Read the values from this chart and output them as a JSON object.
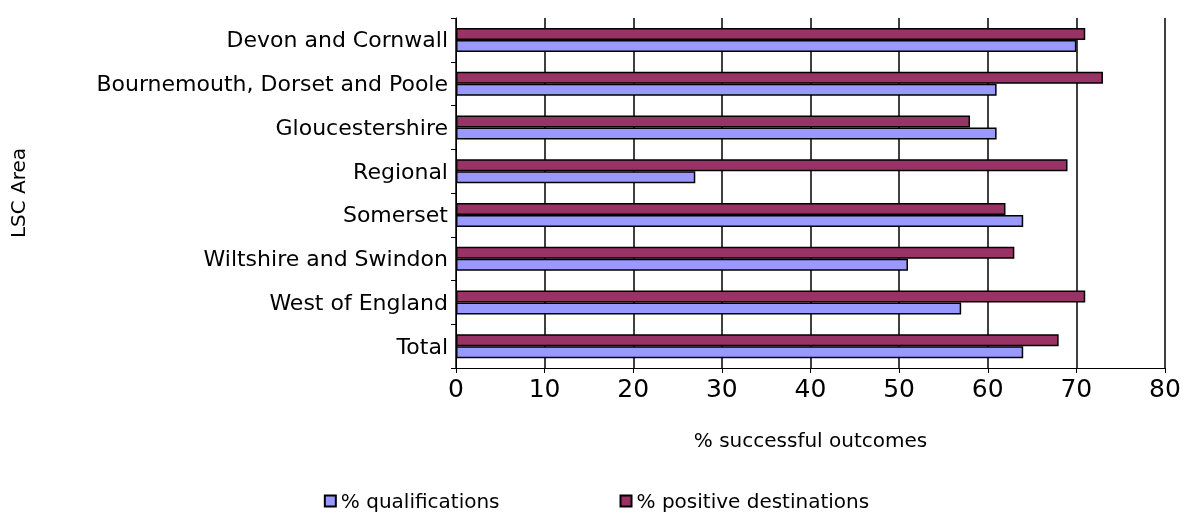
{
  "chart_data": {
    "type": "bar",
    "orientation": "horizontal",
    "categories": [
      "Devon and Cornwall",
      "Bournemouth, Dorset and Poole",
      "Gloucestershire",
      "Regional",
      "Somerset",
      "Wiltshire and Swindon",
      "West of England",
      "Total"
    ],
    "series": [
      {
        "name": "% qualifications",
        "color": "#9999ff",
        "values": [
          70,
          61,
          61,
          27,
          64,
          51,
          57,
          64
        ]
      },
      {
        "name": "% positive destinations",
        "color": "#993366",
        "values": [
          71,
          73,
          58,
          69,
          62,
          63,
          71,
          68
        ]
      }
    ],
    "xlabel": "% successful outcomes",
    "ylabel": "LSC Area",
    "xlim": [
      0,
      80
    ],
    "xticks": [
      0,
      10,
      20,
      30,
      40,
      50,
      60,
      70,
      80
    ],
    "grid": "x",
    "legend": "bottom"
  }
}
